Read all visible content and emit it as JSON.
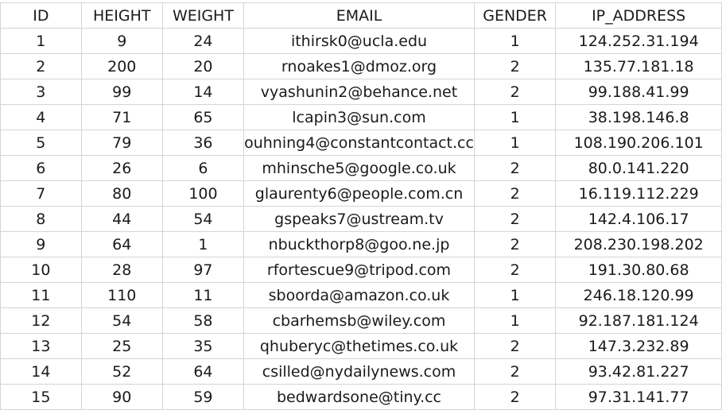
{
  "columns": [
    "ID",
    "HEIGHT",
    "WEIGHT",
    "EMAIL",
    "GENDER",
    "IP_ADDRESS"
  ],
  "rows": [
    [
      "1",
      "9",
      "24",
      "ithirsk0@ucla.edu",
      "1",
      "124.252.31.194"
    ],
    [
      "2",
      "200",
      "20",
      "rnoakes1@dmoz.org",
      "2",
      "135.77.181.18"
    ],
    [
      "3",
      "99",
      "14",
      "vyashunin2@behance.net",
      "2",
      "99.188.41.99"
    ],
    [
      "4",
      "71",
      "65",
      "lcapin3@sun.com",
      "1",
      "38.198.146.8"
    ],
    [
      "5",
      "79",
      "36",
      "ouhning4@constantcontact.cc",
      "1",
      "108.190.206.101"
    ],
    [
      "6",
      "26",
      "6",
      "mhinsche5@google.co.uk",
      "2",
      "80.0.141.220"
    ],
    [
      "7",
      "80",
      "100",
      "glaurenty6@people.com.cn",
      "2",
      "16.119.112.229"
    ],
    [
      "8",
      "44",
      "54",
      "gspeaks7@ustream.tv",
      "2",
      "142.4.106.17"
    ],
    [
      "9",
      "64",
      "1",
      "nbuckthorp8@goo.ne.jp",
      "2",
      "208.230.198.202"
    ],
    [
      "10",
      "28",
      "97",
      "rfortescue9@tripod.com",
      "2",
      "191.30.80.68"
    ],
    [
      "11",
      "110",
      "11",
      "sboorda@amazon.co.uk",
      "1",
      "246.18.120.99"
    ],
    [
      "12",
      "54",
      "58",
      "cbarhemsb@wiley.com",
      "1",
      "92.187.181.124"
    ],
    [
      "13",
      "25",
      "35",
      "qhuberyc@thetimes.co.uk",
      "2",
      "147.3.232.89"
    ],
    [
      "14",
      "52",
      "64",
      "csilled@nydailynews.com",
      "2",
      "93.42.81.227"
    ],
    [
      "15",
      "90",
      "59",
      "bedwardsone@tiny.cc",
      "2",
      "97.31.141.77"
    ]
  ]
}
